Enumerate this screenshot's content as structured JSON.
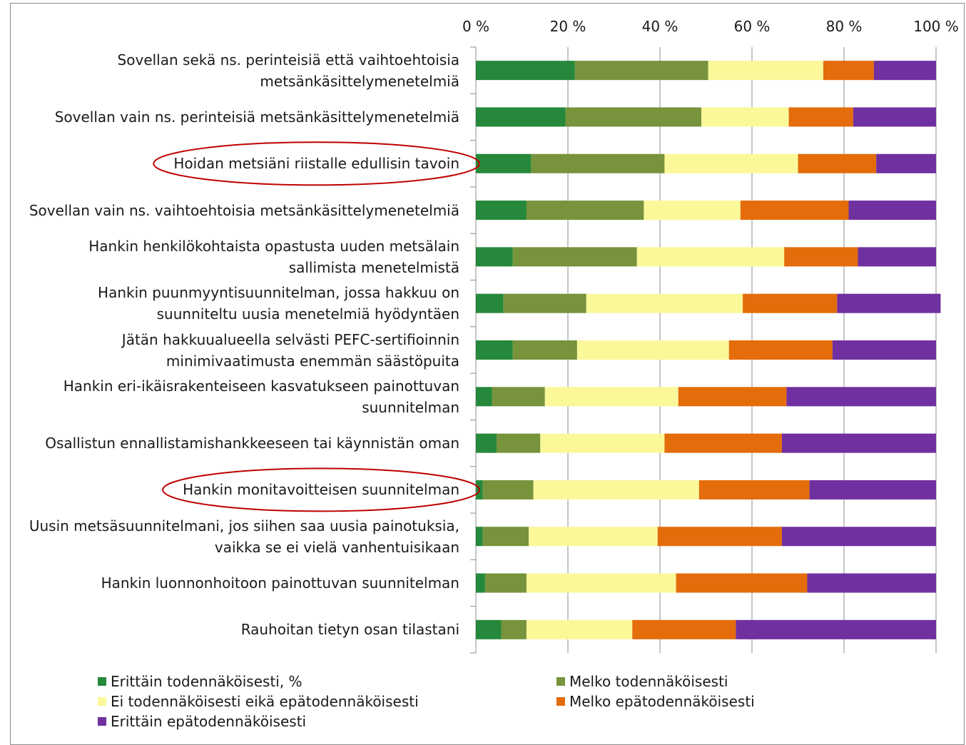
{
  "chart_data": {
    "type": "bar",
    "stacked": true,
    "orientation": "horizontal",
    "xlim": [
      0,
      100
    ],
    "xticks": [
      "0 %",
      "20 %",
      "40 %",
      "60 %",
      "80 %",
      "100 %"
    ],
    "grid": true,
    "legend_position": "bottom",
    "categories": [
      "Sovellan sekä ns. perinteisiä että vaihtoehtoisia\nmetsänkäsittelymenetelmiä",
      "Sovellan vain ns. perinteisiä metsänkäsittelymenetelmiä",
      "Hoidan metsiäni riistalle edullisin tavoin",
      "Sovellan vain ns. vaihtoehtoisia metsänkäsittelymenetelmiä",
      "Hankin henkilökohtaista opastusta uuden metsälain\nsallimista menetelmistä",
      "Hankin puunmyyntisuunnitelman, jossa hakkuu on\nsuunniteltu uusia menetelmiä hyödyntäen",
      "Jätän hakkuualueella selvästi PEFC-sertifioinnin\nminimivaatimusta enemmän säästöpuita",
      "Hankin eri-ikäisrakenteiseen kasvatukseen painottuvan\nsuunnitelman",
      "Osallistun ennallistamishankkeeseen tai käynnistän oman",
      "Hankin monitavoitteisen suunnitelman",
      "Uusin metsäsuunnitelmani, jos siihen saa uusia painotuksia,\nvaikka se ei vielä vanhentuisikaan",
      "Hankin luonnonhoitoon painottuvan suunnitelman",
      "Rauhoitan tietyn osan tilastani"
    ],
    "highlighted": [
      2,
      9
    ],
    "series": [
      {
        "name": "Erittäin todennäköisesti, %",
        "color": "#25883a",
        "values": [
          21.5,
          19.5,
          12,
          11,
          8,
          6,
          8,
          3.5,
          4.5,
          1.5,
          1.5,
          2,
          5.5
        ]
      },
      {
        "name": "Melko todennäköisesti",
        "color": "#77933c",
        "values": [
          29,
          29.5,
          29,
          25.5,
          27,
          18,
          14,
          11.5,
          9.5,
          11,
          10,
          9,
          5.5
        ]
      },
      {
        "name": "Ei todennäköisesti eikä epätodennäköisesti",
        "color": "#fbf89a",
        "values": [
          25,
          19,
          29,
          21,
          32,
          34,
          33,
          29,
          27,
          36,
          28,
          32.5,
          23
        ]
      },
      {
        "name": "Melko epätodennäköisesti",
        "color": "#e46c0a",
        "values": [
          11,
          14,
          17,
          23.5,
          16,
          20.5,
          22.5,
          23.5,
          25.5,
          24,
          27,
          28.5,
          22.5
        ]
      },
      {
        "name": "Erittäin epätodennäköisesti",
        "color": "#7030a0",
        "values": [
          13.5,
          18,
          13,
          19,
          17,
          22.5,
          22.5,
          32.5,
          33.5,
          27.5,
          33.5,
          28,
          43.5
        ]
      }
    ]
  }
}
